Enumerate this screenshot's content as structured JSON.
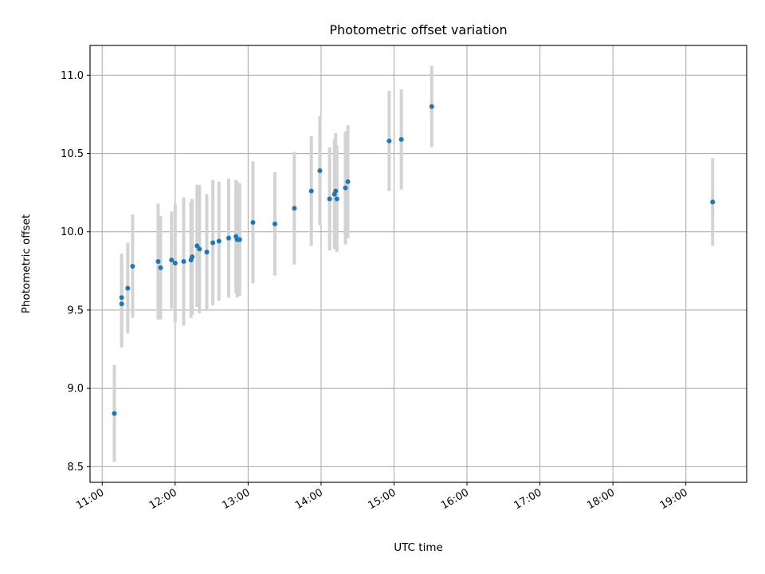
{
  "chart_data": {
    "type": "scatter",
    "title": "Photometric offset variation",
    "xlabel": "UTC time",
    "ylabel": "Photometric offset",
    "x_unit": "UTC clock time (HH:MM)",
    "xlim": [
      "10:50",
      "19:50"
    ],
    "ylim": [
      8.4,
      11.19
    ],
    "xticks": [
      "11:00",
      "12:00",
      "13:00",
      "14:00",
      "15:00",
      "16:00",
      "17:00",
      "18:00",
      "19:00"
    ],
    "yticks": [
      "8.5",
      "9.0",
      "9.5",
      "10.0",
      "10.5",
      "11.0"
    ],
    "grid": true,
    "legend": "none",
    "colors": {
      "point": "#1f77b4",
      "errorbar": "#d3d3d3",
      "grid": "#b0b0b0"
    },
    "series": [
      {
        "x": [
          "11:10",
          "11:16",
          "11:16",
          "11:21",
          "11:25",
          "11:46",
          "11:48",
          "11:57",
          "12:00",
          "12:07",
          "12:13",
          "12:14",
          "12:18",
          "12:20",
          "12:26",
          "12:31",
          "12:36",
          "12:44",
          "12:50",
          "12:51",
          "12:53",
          "13:04",
          "13:22",
          "13:38",
          "13:52",
          "13:59",
          "14:07",
          "14:11",
          "14:12",
          "14:13",
          "14:20",
          "14:22",
          "14:56",
          "15:06",
          "15:31",
          "19:22"
        ],
        "y": [
          8.84,
          9.54,
          9.58,
          9.64,
          9.78,
          9.81,
          9.77,
          9.82,
          9.8,
          9.81,
          9.82,
          9.84,
          9.91,
          9.89,
          9.87,
          9.93,
          9.94,
          9.96,
          9.97,
          9.95,
          9.95,
          10.06,
          10.05,
          10.15,
          10.26,
          10.39,
          10.21,
          10.24,
          10.26,
          10.21,
          10.28,
          10.32,
          10.58,
          10.59,
          10.8,
          10.19
        ],
        "yerr": [
          0.31,
          0.28,
          0.28,
          0.29,
          0.33,
          0.37,
          0.33,
          0.31,
          0.38,
          0.41,
          0.37,
          0.37,
          0.39,
          0.41,
          0.37,
          0.4,
          0.38,
          0.38,
          0.36,
          0.37,
          0.36,
          0.39,
          0.33,
          0.36,
          0.35,
          0.35,
          0.33,
          0.35,
          0.37,
          0.34,
          0.36,
          0.36,
          0.32,
          0.32,
          0.26,
          0.28
        ]
      }
    ]
  }
}
